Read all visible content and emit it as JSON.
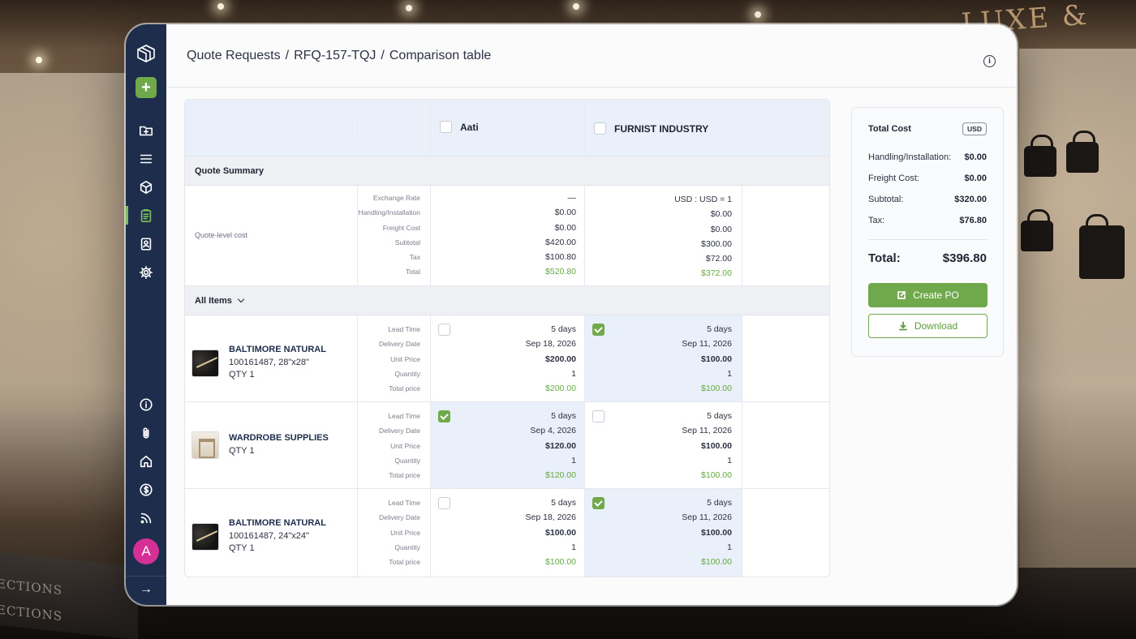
{
  "breadcrumb": {
    "root": "Quote Requests",
    "rfq": "RFQ-157-TQJ",
    "page": "Comparison table"
  },
  "sidebar": {
    "add_label": "+",
    "avatar_letter": "A",
    "collapse_label": "→",
    "items": [
      "folder-icon",
      "list-icon",
      "box-icon",
      "clipboard-icon",
      "contacts-icon",
      "gear-icon"
    ],
    "bottom_items": [
      "info-icon",
      "paperclip-icon",
      "home-icon",
      "dollar-icon",
      "rss-icon"
    ]
  },
  "background": {
    "brand": "LUXE & CO.",
    "book_1": "ECTIONS",
    "book_2": "ECTIONS"
  },
  "table": {
    "vendors": [
      {
        "name": "Aati",
        "checked": false
      },
      {
        "name": "FURNIST INDUSTRY",
        "checked": false
      }
    ],
    "quote_summary_label": "Quote Summary",
    "quote_level_label": "Quote-level cost",
    "summary_labels": [
      "Exchange Rate",
      "Handling/Installation",
      "Freight Cost",
      "Subtotal",
      "Tax",
      "Total"
    ],
    "summary_values": [
      [
        "—",
        "$0.00",
        "$0.00",
        "$420.00",
        "$100.80",
        "$520.80"
      ],
      [
        "USD : USD = 1",
        "$0.00",
        "$0.00",
        "$300.00",
        "$72.00",
        "$372.00"
      ]
    ],
    "all_items_label": "All Items",
    "item_labels": [
      "Lead Time",
      "Delivery Date",
      "Unit Price",
      "Quantity",
      "Total price"
    ],
    "items": [
      {
        "name": "BALTIMORE NATURAL",
        "sku": "100161487, 28\"x28\"",
        "qty": "QTY 1",
        "thumb": "marble",
        "quotes": [
          {
            "checked": false,
            "lead": "5 days",
            "date": "Sep 18, 2026",
            "unit": "$200.00",
            "quantity": "1",
            "total": "$200.00"
          },
          {
            "checked": true,
            "lead": "5 days",
            "date": "Sep 11, 2026",
            "unit": "$100.00",
            "quantity": "1",
            "total": "$100.00"
          }
        ]
      },
      {
        "name": "WARDROBE SUPPLIES",
        "sku": "",
        "qty": "QTY 1",
        "thumb": "wardrobe",
        "quotes": [
          {
            "checked": true,
            "lead": "5 days",
            "date": "Sep 4, 2026",
            "unit": "$120.00",
            "quantity": "1",
            "total": "$120.00"
          },
          {
            "checked": false,
            "lead": "5 days",
            "date": "Sep 11, 2026",
            "unit": "$100.00",
            "quantity": "1",
            "total": "$100.00"
          }
        ]
      },
      {
        "name": "BALTIMORE NATURAL",
        "sku": "100161487, 24\"x24\"",
        "qty": "QTY 1",
        "thumb": "marble",
        "quotes": [
          {
            "checked": false,
            "lead": "5 days",
            "date": "Sep 18, 2026",
            "unit": "$100.00",
            "quantity": "1",
            "total": "$100.00"
          },
          {
            "checked": true,
            "lead": "5 days",
            "date": "Sep 11, 2026",
            "unit": "$100.00",
            "quantity": "1",
            "total": "$100.00"
          }
        ]
      }
    ]
  },
  "summary": {
    "title": "Total Cost",
    "currency": "USD",
    "lines": [
      {
        "label": "Handling/Installation:",
        "value": "$0.00"
      },
      {
        "label": "Freight Cost:",
        "value": "$0.00"
      },
      {
        "label": "Subtotal:",
        "value": "$320.00"
      },
      {
        "label": "Tax:",
        "value": "$76.80"
      }
    ],
    "total_label": "Total:",
    "total_value": "$396.80",
    "create_po_label": "Create PO",
    "download_label": "Download"
  },
  "colors": {
    "sidebar": "#1f2d4d",
    "accent": "#6fa94b",
    "selected_cell": "#e9f0f9",
    "avatar": "#d62f95"
  }
}
